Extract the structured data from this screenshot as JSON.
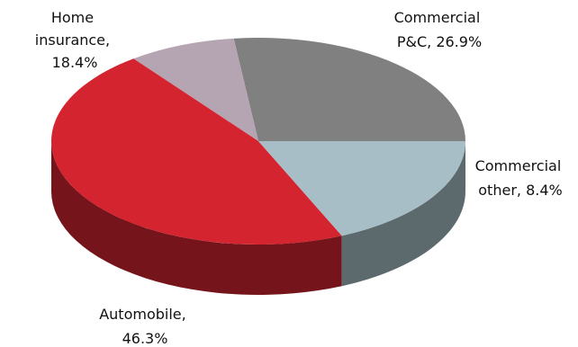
{
  "chart_data": {
    "type": "pie",
    "title": "",
    "style": "3d",
    "slices": [
      {
        "label_lines": [
          "Commercial",
          "P&C, 26.9%"
        ],
        "name": "Commercial P&C",
        "value": 26.9,
        "color": "#808080"
      },
      {
        "label_lines": [
          "Commercial",
          "other, 8.4%"
        ],
        "name": "Commercial other",
        "value": 8.4,
        "color": "#b5a4b1"
      },
      {
        "label_lines": [
          "Automobile,",
          "46.3%"
        ],
        "name": "Automobile",
        "value": 46.3,
        "color": "#d42430"
      },
      {
        "label_lines": [
          "Home",
          "insurance,",
          "18.4%"
        ],
        "name": "Home insurance",
        "value": 18.4,
        "color": "#a8bec6"
      }
    ]
  }
}
